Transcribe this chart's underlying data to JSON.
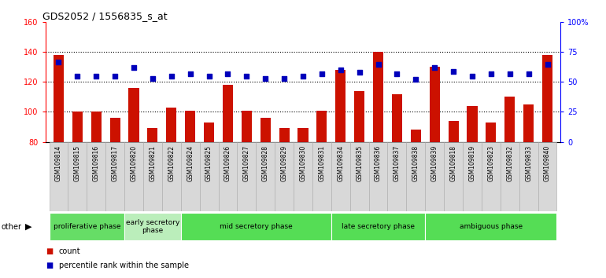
{
  "title": "GDS2052 / 1556835_s_at",
  "samples": [
    "GSM109814",
    "GSM109815",
    "GSM109816",
    "GSM109817",
    "GSM109820",
    "GSM109821",
    "GSM109822",
    "GSM109824",
    "GSM109825",
    "GSM109826",
    "GSM109827",
    "GSM109828",
    "GSM109829",
    "GSM109830",
    "GSM109831",
    "GSM109834",
    "GSM109835",
    "GSM109836",
    "GSM109837",
    "GSM109838",
    "GSM109839",
    "GSM109818",
    "GSM109819",
    "GSM109823",
    "GSM109832",
    "GSM109833",
    "GSM109840"
  ],
  "counts": [
    138,
    100,
    100,
    96,
    116,
    89,
    103,
    101,
    93,
    118,
    101,
    96,
    89,
    89,
    101,
    128,
    114,
    140,
    112,
    88,
    130,
    94,
    104,
    93,
    110,
    105,
    138
  ],
  "percentiles": [
    67,
    55,
    55,
    55,
    62,
    53,
    55,
    57,
    55,
    57,
    55,
    53,
    53,
    55,
    57,
    60,
    58,
    65,
    57,
    52,
    62,
    59,
    55,
    57,
    57,
    57,
    65
  ],
  "phases": [
    {
      "name": "proliferative phase",
      "start": 0,
      "end": 4,
      "color": "#66dd66"
    },
    {
      "name": "early secretory\nphase",
      "start": 4,
      "end": 7,
      "color": "#bbeebb"
    },
    {
      "name": "mid secretory phase",
      "start": 7,
      "end": 15,
      "color": "#55dd55"
    },
    {
      "name": "late secretory phase",
      "start": 15,
      "end": 20,
      "color": "#55dd55"
    },
    {
      "name": "ambiguous phase",
      "start": 20,
      "end": 27,
      "color": "#55dd55"
    }
  ],
  "ylim_left": [
    80,
    160
  ],
  "ylim_right": [
    0,
    100
  ],
  "bar_color": "#cc1100",
  "dot_color": "#0000bb",
  "left_ticks": [
    80,
    100,
    120,
    140,
    160
  ],
  "right_ticks": [
    0,
    25,
    50,
    75,
    100
  ],
  "right_tick_labels": [
    "0",
    "25",
    "50",
    "75",
    "100%"
  ],
  "grid_lines": [
    100,
    120,
    140
  ],
  "plot_bg": "#ffffff",
  "tick_area_bg": "#d8d8d8"
}
